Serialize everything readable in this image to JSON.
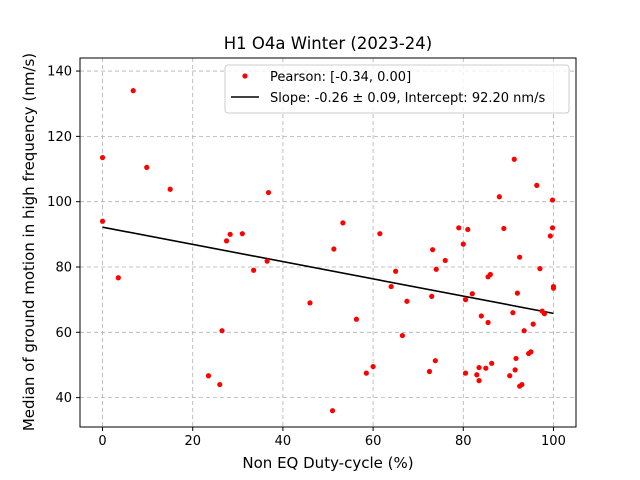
{
  "chart_data": {
    "type": "scatter",
    "title": "H1 O4a Winter (2023-24)",
    "xlabel": "Non EQ Duty-cycle (%)",
    "ylabel": "Median of ground motion in high frequency (nm/s)",
    "xlim": [
      -5,
      105
    ],
    "ylim": [
      31,
      144
    ],
    "xticks": [
      0,
      20,
      40,
      60,
      80,
      100
    ],
    "yticks": [
      40,
      60,
      80,
      100,
      120,
      140
    ],
    "grid": true,
    "legend_position": "top-right",
    "series": [
      {
        "name": "Pearson: [-0.34, 0.00]",
        "kind": "points",
        "color": "#ff0000",
        "points": [
          [
            0.0,
            113.5
          ],
          [
            0.0,
            94.0
          ],
          [
            3.5,
            76.7
          ],
          [
            6.8,
            134.0
          ],
          [
            9.8,
            110.5
          ],
          [
            15.0,
            103.8
          ],
          [
            23.5,
            46.7
          ],
          [
            26.0,
            44.0
          ],
          [
            26.5,
            60.5
          ],
          [
            27.5,
            88.0
          ],
          [
            28.3,
            90.0
          ],
          [
            31.0,
            90.2
          ],
          [
            33.5,
            79.0
          ],
          [
            36.5,
            81.8
          ],
          [
            36.8,
            102.8
          ],
          [
            46.0,
            69.0
          ],
          [
            51.0,
            36.0
          ],
          [
            51.3,
            85.5
          ],
          [
            53.3,
            93.5
          ],
          [
            56.3,
            64.0
          ],
          [
            58.5,
            47.5
          ],
          [
            60.0,
            49.5
          ],
          [
            61.5,
            90.2
          ],
          [
            64.0,
            74.0
          ],
          [
            65.0,
            78.7
          ],
          [
            66.5,
            59.0
          ],
          [
            67.5,
            69.5
          ],
          [
            72.5,
            48.0
          ],
          [
            73.0,
            71.0
          ],
          [
            73.2,
            85.3
          ],
          [
            73.8,
            51.3
          ],
          [
            74.0,
            79.3
          ],
          [
            76.0,
            82.0
          ],
          [
            79.0,
            92.0
          ],
          [
            80.0,
            87.0
          ],
          [
            80.5,
            70.0
          ],
          [
            80.5,
            47.5
          ],
          [
            81.0,
            91.5
          ],
          [
            82.0,
            71.8
          ],
          [
            83.0,
            47.0
          ],
          [
            83.5,
            45.2
          ],
          [
            83.5,
            49.2
          ],
          [
            84.0,
            65.0
          ],
          [
            85.0,
            49.0
          ],
          [
            85.5,
            77.0
          ],
          [
            85.5,
            63.0
          ],
          [
            86.0,
            77.7
          ],
          [
            86.3,
            50.5
          ],
          [
            88.0,
            101.5
          ],
          [
            89.0,
            91.8
          ],
          [
            90.3,
            46.7
          ],
          [
            91.0,
            66.0
          ],
          [
            91.3,
            113.0
          ],
          [
            91.5,
            48.5
          ],
          [
            91.7,
            52.0
          ],
          [
            92.0,
            72.0
          ],
          [
            92.5,
            83.0
          ],
          [
            92.5,
            43.5
          ],
          [
            93.0,
            44.0
          ],
          [
            93.5,
            60.5
          ],
          [
            94.5,
            53.5
          ],
          [
            95.0,
            54.0
          ],
          [
            95.5,
            62.5
          ],
          [
            96.3,
            105.0
          ],
          [
            97.0,
            79.5
          ],
          [
            97.5,
            66.5
          ],
          [
            98.0,
            65.7
          ],
          [
            99.3,
            89.5
          ],
          [
            99.8,
            100.5
          ],
          [
            99.8,
            92.0
          ],
          [
            100.0,
            74.0
          ],
          [
            100.0,
            73.5
          ]
        ]
      },
      {
        "name": "Slope: -0.26 ± 0.09, Intercept: 92.20 nm/s",
        "kind": "line",
        "color": "#000000",
        "x": [
          0,
          100
        ],
        "y": [
          92.2,
          65.8
        ]
      }
    ]
  }
}
